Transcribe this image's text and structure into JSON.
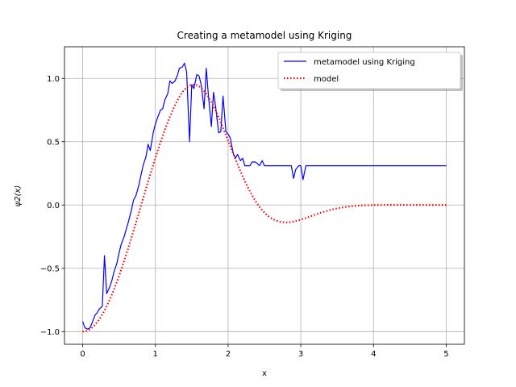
{
  "chart_data": {
    "type": "line",
    "title": "Creating a metamodel using Kriging",
    "xlabel": "x",
    "ylabel": "ψ2(x)",
    "xlim": [
      -0.25,
      5.25
    ],
    "ylim": [
      -1.1,
      1.25
    ],
    "x_ticks": [
      0,
      1,
      2,
      3,
      4,
      5
    ],
    "x_tick_labels": [
      "0",
      "1",
      "2",
      "3",
      "4",
      "5"
    ],
    "y_ticks": [
      -1.0,
      -0.5,
      0.0,
      0.5,
      1.0
    ],
    "y_tick_labels": [
      "−1.0",
      "−0.5",
      "0.0",
      "0.5",
      "1.0"
    ],
    "grid": true,
    "legend_position": "upper right",
    "series": [
      {
        "name": "metamodel using Kriging",
        "color": "#0000ff",
        "style": "solid",
        "points": [
          [
            0.0,
            -0.92
          ],
          [
            0.03,
            -0.97
          ],
          [
            0.07,
            -0.98
          ],
          [
            0.1,
            -0.97
          ],
          [
            0.13,
            -0.93
          ],
          [
            0.17,
            -0.87
          ],
          [
            0.2,
            -0.85
          ],
          [
            0.23,
            -0.82
          ],
          [
            0.27,
            -0.8
          ],
          [
            0.3,
            -0.4
          ],
          [
            0.33,
            -0.7
          ],
          [
            0.37,
            -0.65
          ],
          [
            0.4,
            -0.6
          ],
          [
            0.43,
            -0.53
          ],
          [
            0.47,
            -0.46
          ],
          [
            0.5,
            -0.38
          ],
          [
            0.53,
            -0.31
          ],
          [
            0.57,
            -0.25
          ],
          [
            0.6,
            -0.19
          ],
          [
            0.63,
            -0.13
          ],
          [
            0.67,
            -0.04
          ],
          [
            0.7,
            0.04
          ],
          [
            0.73,
            0.07
          ],
          [
            0.77,
            0.15
          ],
          [
            0.8,
            0.23
          ],
          [
            0.83,
            0.31
          ],
          [
            0.87,
            0.38
          ],
          [
            0.9,
            0.48
          ],
          [
            0.93,
            0.43
          ],
          [
            0.97,
            0.57
          ],
          [
            1.0,
            0.64
          ],
          [
            1.03,
            0.69
          ],
          [
            1.07,
            0.75
          ],
          [
            1.1,
            0.76
          ],
          [
            1.13,
            0.83
          ],
          [
            1.17,
            0.88
          ],
          [
            1.2,
            0.98
          ],
          [
            1.23,
            0.96
          ],
          [
            1.27,
            0.98
          ],
          [
            1.3,
            1.02
          ],
          [
            1.33,
            1.08
          ],
          [
            1.37,
            1.09
          ],
          [
            1.4,
            1.12
          ],
          [
            1.43,
            1.05
          ],
          [
            1.47,
            0.5
          ],
          [
            1.5,
            0.95
          ],
          [
            1.53,
            0.92
          ],
          [
            1.57,
            1.03
          ],
          [
            1.6,
            1.02
          ],
          [
            1.63,
            0.95
          ],
          [
            1.67,
            0.76
          ],
          [
            1.7,
            1.08
          ],
          [
            1.73,
            0.86
          ],
          [
            1.77,
            0.62
          ],
          [
            1.8,
            0.89
          ],
          [
            1.83,
            0.77
          ],
          [
            1.87,
            0.57
          ],
          [
            1.9,
            0.58
          ],
          [
            1.93,
            0.86
          ],
          [
            1.97,
            0.58
          ],
          [
            2.0,
            0.56
          ],
          [
            2.03,
            0.53
          ],
          [
            2.07,
            0.41
          ],
          [
            2.1,
            0.37
          ],
          [
            2.13,
            0.4
          ],
          [
            2.17,
            0.35
          ],
          [
            2.2,
            0.37
          ],
          [
            2.23,
            0.31
          ],
          [
            2.27,
            0.31
          ],
          [
            2.3,
            0.31
          ],
          [
            2.33,
            0.34
          ],
          [
            2.37,
            0.34
          ],
          [
            2.4,
            0.33
          ],
          [
            2.43,
            0.31
          ],
          [
            2.47,
            0.35
          ],
          [
            2.5,
            0.31
          ],
          [
            2.6,
            0.31
          ],
          [
            2.7,
            0.31
          ],
          [
            2.8,
            0.31
          ],
          [
            2.87,
            0.31
          ],
          [
            2.9,
            0.21
          ],
          [
            2.93,
            0.28
          ],
          [
            2.97,
            0.31
          ],
          [
            3.0,
            0.31
          ],
          [
            3.03,
            0.2
          ],
          [
            3.07,
            0.31
          ],
          [
            3.1,
            0.31
          ],
          [
            3.5,
            0.31
          ],
          [
            4.0,
            0.31
          ],
          [
            4.5,
            0.31
          ],
          [
            5.0,
            0.31
          ]
        ]
      },
      {
        "name": "model",
        "color": "#ff0000",
        "style": "dotted",
        "function": "psi2"
      }
    ]
  }
}
